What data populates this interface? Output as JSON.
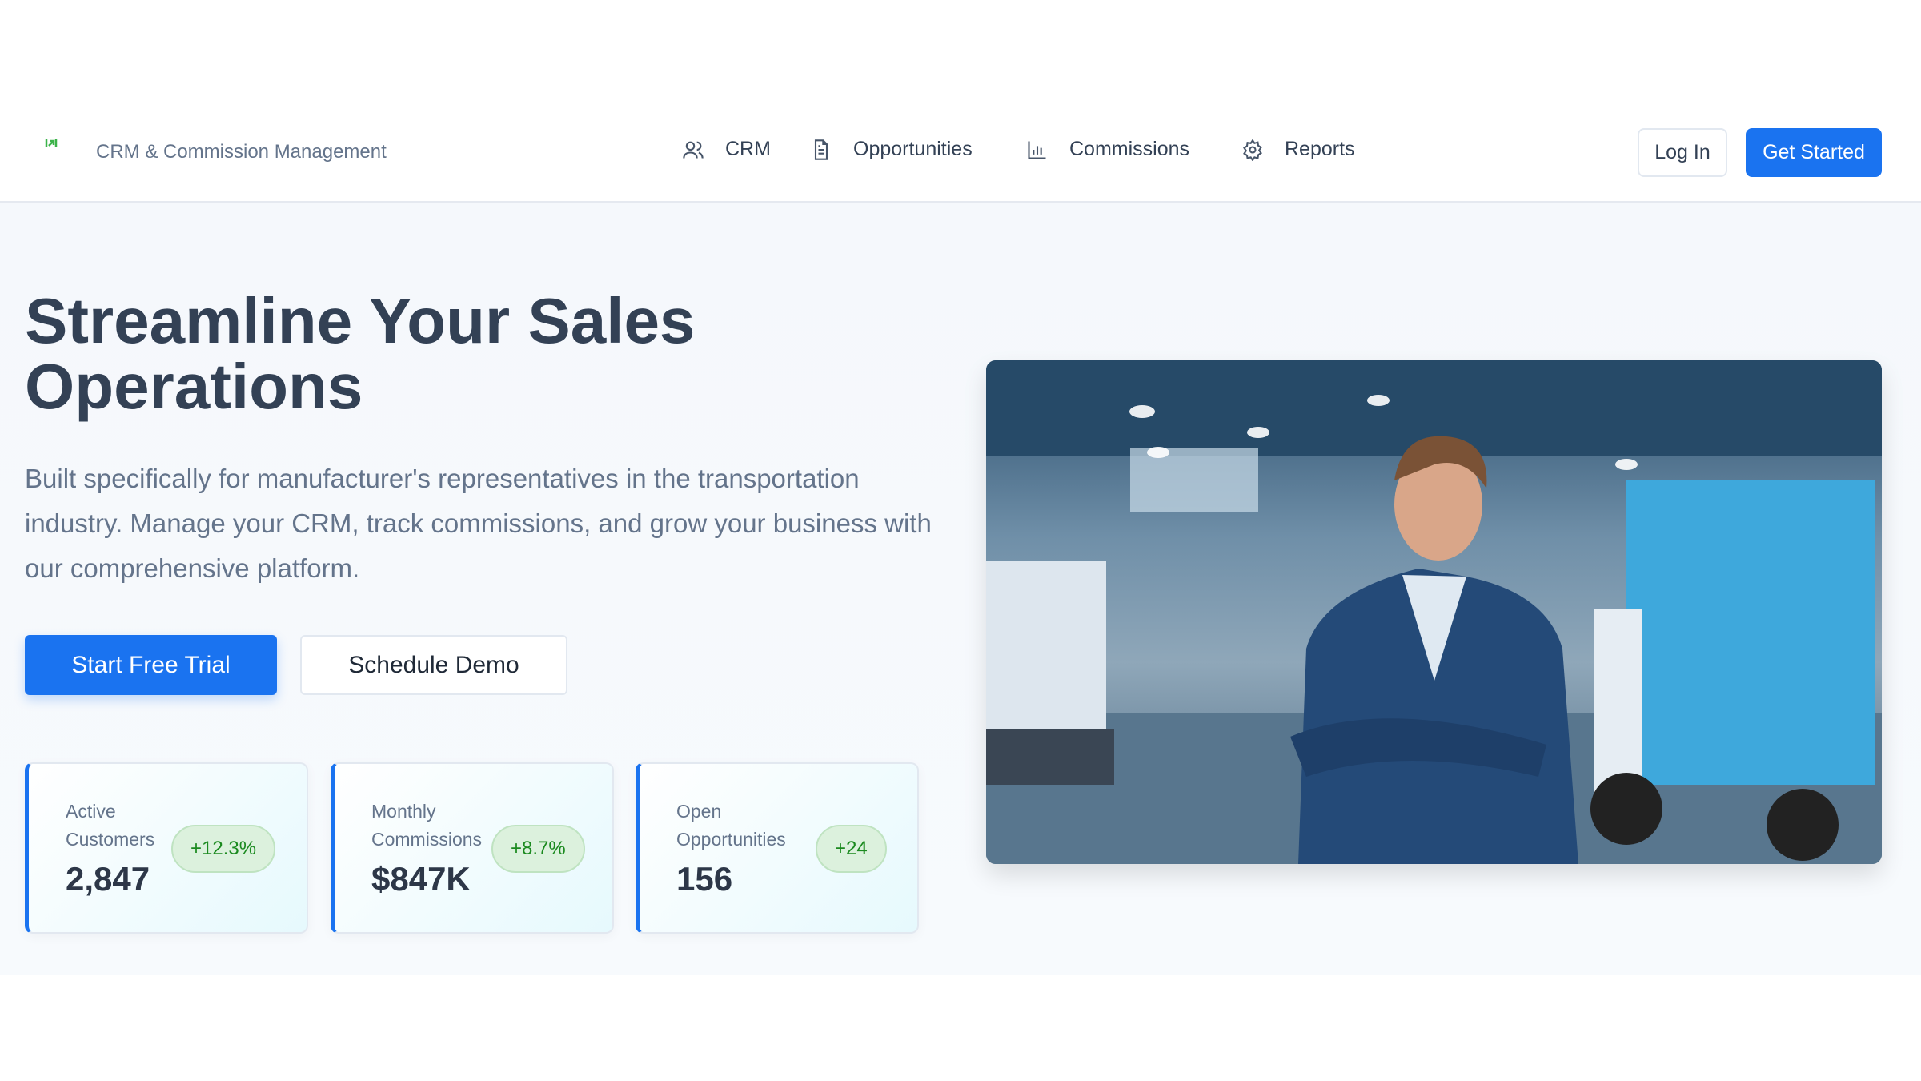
{
  "header": {
    "brand": "CRM & Commission Management",
    "nav": [
      {
        "label": "CRM",
        "icon": "users-icon"
      },
      {
        "label": "Opportunities",
        "icon": "document-icon"
      },
      {
        "label": "Commissions",
        "icon": "bar-chart-icon"
      },
      {
        "label": "Reports",
        "icon": "gear-icon"
      }
    ],
    "login_label": "Log In",
    "get_started_label": "Get Started"
  },
  "hero": {
    "title": "Streamline Your Sales Operations",
    "description": "Built specifically for manufacturer's representatives in the transportation industry. Manage your CRM, track commissions, and grow your business with our comprehensive platform.",
    "primary_cta": "Start Free Trial",
    "secondary_cta": "Schedule Demo",
    "stats": [
      {
        "label": "Active Customers",
        "value": "2,847",
        "change": "+12.3%"
      },
      {
        "label": "Monthly Commissions",
        "value": "$847K",
        "change": "+8.7%"
      },
      {
        "label": "Open Opportunities",
        "value": "156",
        "change": "+24"
      }
    ]
  },
  "colors": {
    "accent": "#1a73f0",
    "positive": "#1b8a1f",
    "heading": "#334155"
  }
}
